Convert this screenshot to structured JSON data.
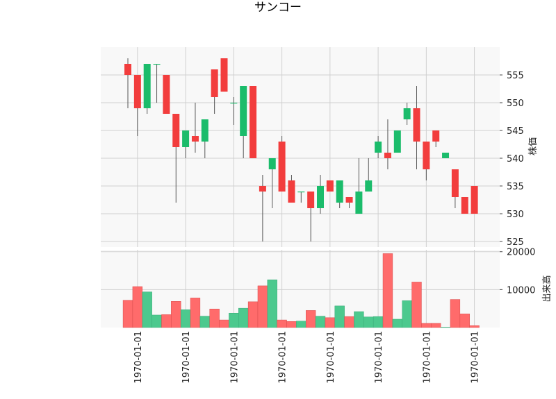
{
  "chart_data": {
    "type": "candlestick",
    "title": "サンコー",
    "price_axis": {
      "label": "株価",
      "ylim": [
        524,
        560
      ],
      "ticks": [
        525,
        530,
        535,
        540,
        545,
        550,
        555
      ]
    },
    "volume_axis": {
      "label": "出来高",
      "ylim": [
        0,
        20500
      ],
      "ticks": [
        10000,
        20000
      ]
    },
    "x_tick_labels": [
      "1970-01-01",
      "1970-01-01",
      "1970-01-01",
      "1970-01-01",
      "1970-01-01",
      "1970-01-01",
      "1970-01-01",
      "1970-01-01"
    ],
    "x_tick_positions": [
      1,
      6,
      11,
      16,
      21,
      26,
      31,
      36
    ],
    "grid": true,
    "colors": {
      "up": "#1bbc6b",
      "down": "#f23d3d",
      "volume_up": "#4cc98e",
      "volume_down": "#ff6b6b",
      "wick": "#555555",
      "panel_bg": "#f8f8f8",
      "grid": "#d0d0d0"
    },
    "candles": [
      {
        "open": 557,
        "high": 558,
        "low": 549,
        "close": 555,
        "volume": 7200
      },
      {
        "open": 555,
        "high": 555,
        "low": 544,
        "close": 549,
        "volume": 10800
      },
      {
        "open": 549,
        "high": 557,
        "low": 548,
        "close": 557,
        "volume": 9400
      },
      {
        "open": 557,
        "high": 557,
        "low": 550,
        "close": 557,
        "volume": 3300
      },
      {
        "open": 555,
        "high": 555,
        "low": 548,
        "close": 548,
        "volume": 3400
      },
      {
        "open": 548,
        "high": 548,
        "low": 532,
        "close": 542,
        "volume": 6900
      },
      {
        "open": 542,
        "high": 545,
        "low": 540,
        "close": 545,
        "volume": 4700
      },
      {
        "open": 544,
        "high": 550,
        "low": 541,
        "close": 543,
        "volume": 7800
      },
      {
        "open": 543,
        "high": 547,
        "low": 540,
        "close": 547,
        "volume": 3000
      },
      {
        "open": 556,
        "high": 556,
        "low": 548,
        "close": 551,
        "volume": 4900
      },
      {
        "open": 558,
        "high": 558,
        "low": 552,
        "close": 552,
        "volume": 2000
      },
      {
        "open": 550,
        "high": 551,
        "low": 546,
        "close": 550,
        "volume": 3800
      },
      {
        "open": 544,
        "high": 553,
        "low": 540,
        "close": 553,
        "volume": 5100
      },
      {
        "open": 553,
        "high": 553,
        "low": 540,
        "close": 540,
        "volume": 6800
      },
      {
        "open": 535,
        "high": 537,
        "low": 525,
        "close": 534,
        "volume": 11000
      },
      {
        "open": 538,
        "high": 540,
        "low": 531,
        "close": 540,
        "volume": 12600
      },
      {
        "open": 543,
        "high": 544,
        "low": 534,
        "close": 534,
        "volume": 2000
      },
      {
        "open": 536,
        "high": 537,
        "low": 532,
        "close": 532,
        "volume": 1600
      },
      {
        "open": 534,
        "high": 534,
        "low": 532,
        "close": 534,
        "volume": 1700
      },
      {
        "open": 534,
        "high": 534,
        "low": 525,
        "close": 531,
        "volume": 4500
      },
      {
        "open": 531,
        "high": 537,
        "low": 530,
        "close": 535,
        "volume": 3000
      },
      {
        "open": 536,
        "high": 536,
        "low": 534,
        "close": 534,
        "volume": 2600
      },
      {
        "open": 532,
        "high": 536,
        "low": 531,
        "close": 536,
        "volume": 5700
      },
      {
        "open": 533,
        "high": 533,
        "low": 531,
        "close": 532,
        "volume": 2900
      },
      {
        "open": 530,
        "high": 540,
        "low": 530,
        "close": 534,
        "volume": 4200
      },
      {
        "open": 534,
        "high": 540,
        "low": 534,
        "close": 536,
        "volume": 2800
      },
      {
        "open": 541,
        "high": 544,
        "low": 540,
        "close": 543,
        "volume": 2900
      },
      {
        "open": 541,
        "high": 547,
        "low": 538,
        "close": 540,
        "volume": 19500
      },
      {
        "open": 541,
        "high": 545,
        "low": 541,
        "close": 545,
        "volume": 2200
      },
      {
        "open": 547,
        "high": 550,
        "low": 546,
        "close": 549,
        "volume": 7100
      },
      {
        "open": 549,
        "high": 553,
        "low": 538,
        "close": 543,
        "volume": 12000
      },
      {
        "open": 543,
        "high": 543,
        "low": 536,
        "close": 538,
        "volume": 1100
      },
      {
        "open": 545,
        "high": 545,
        "low": 542,
        "close": 543,
        "volume": 1100
      },
      {
        "open": 540,
        "high": 541,
        "low": 540,
        "close": 541,
        "volume": 100
      },
      {
        "open": 538,
        "high": 538,
        "low": 531,
        "close": 533,
        "volume": 7400
      },
      {
        "open": 533,
        "high": 533,
        "low": 530,
        "close": 530,
        "volume": 3600
      },
      {
        "open": 535,
        "high": 535,
        "low": 530,
        "close": 530,
        "volume": 500
      }
    ]
  }
}
